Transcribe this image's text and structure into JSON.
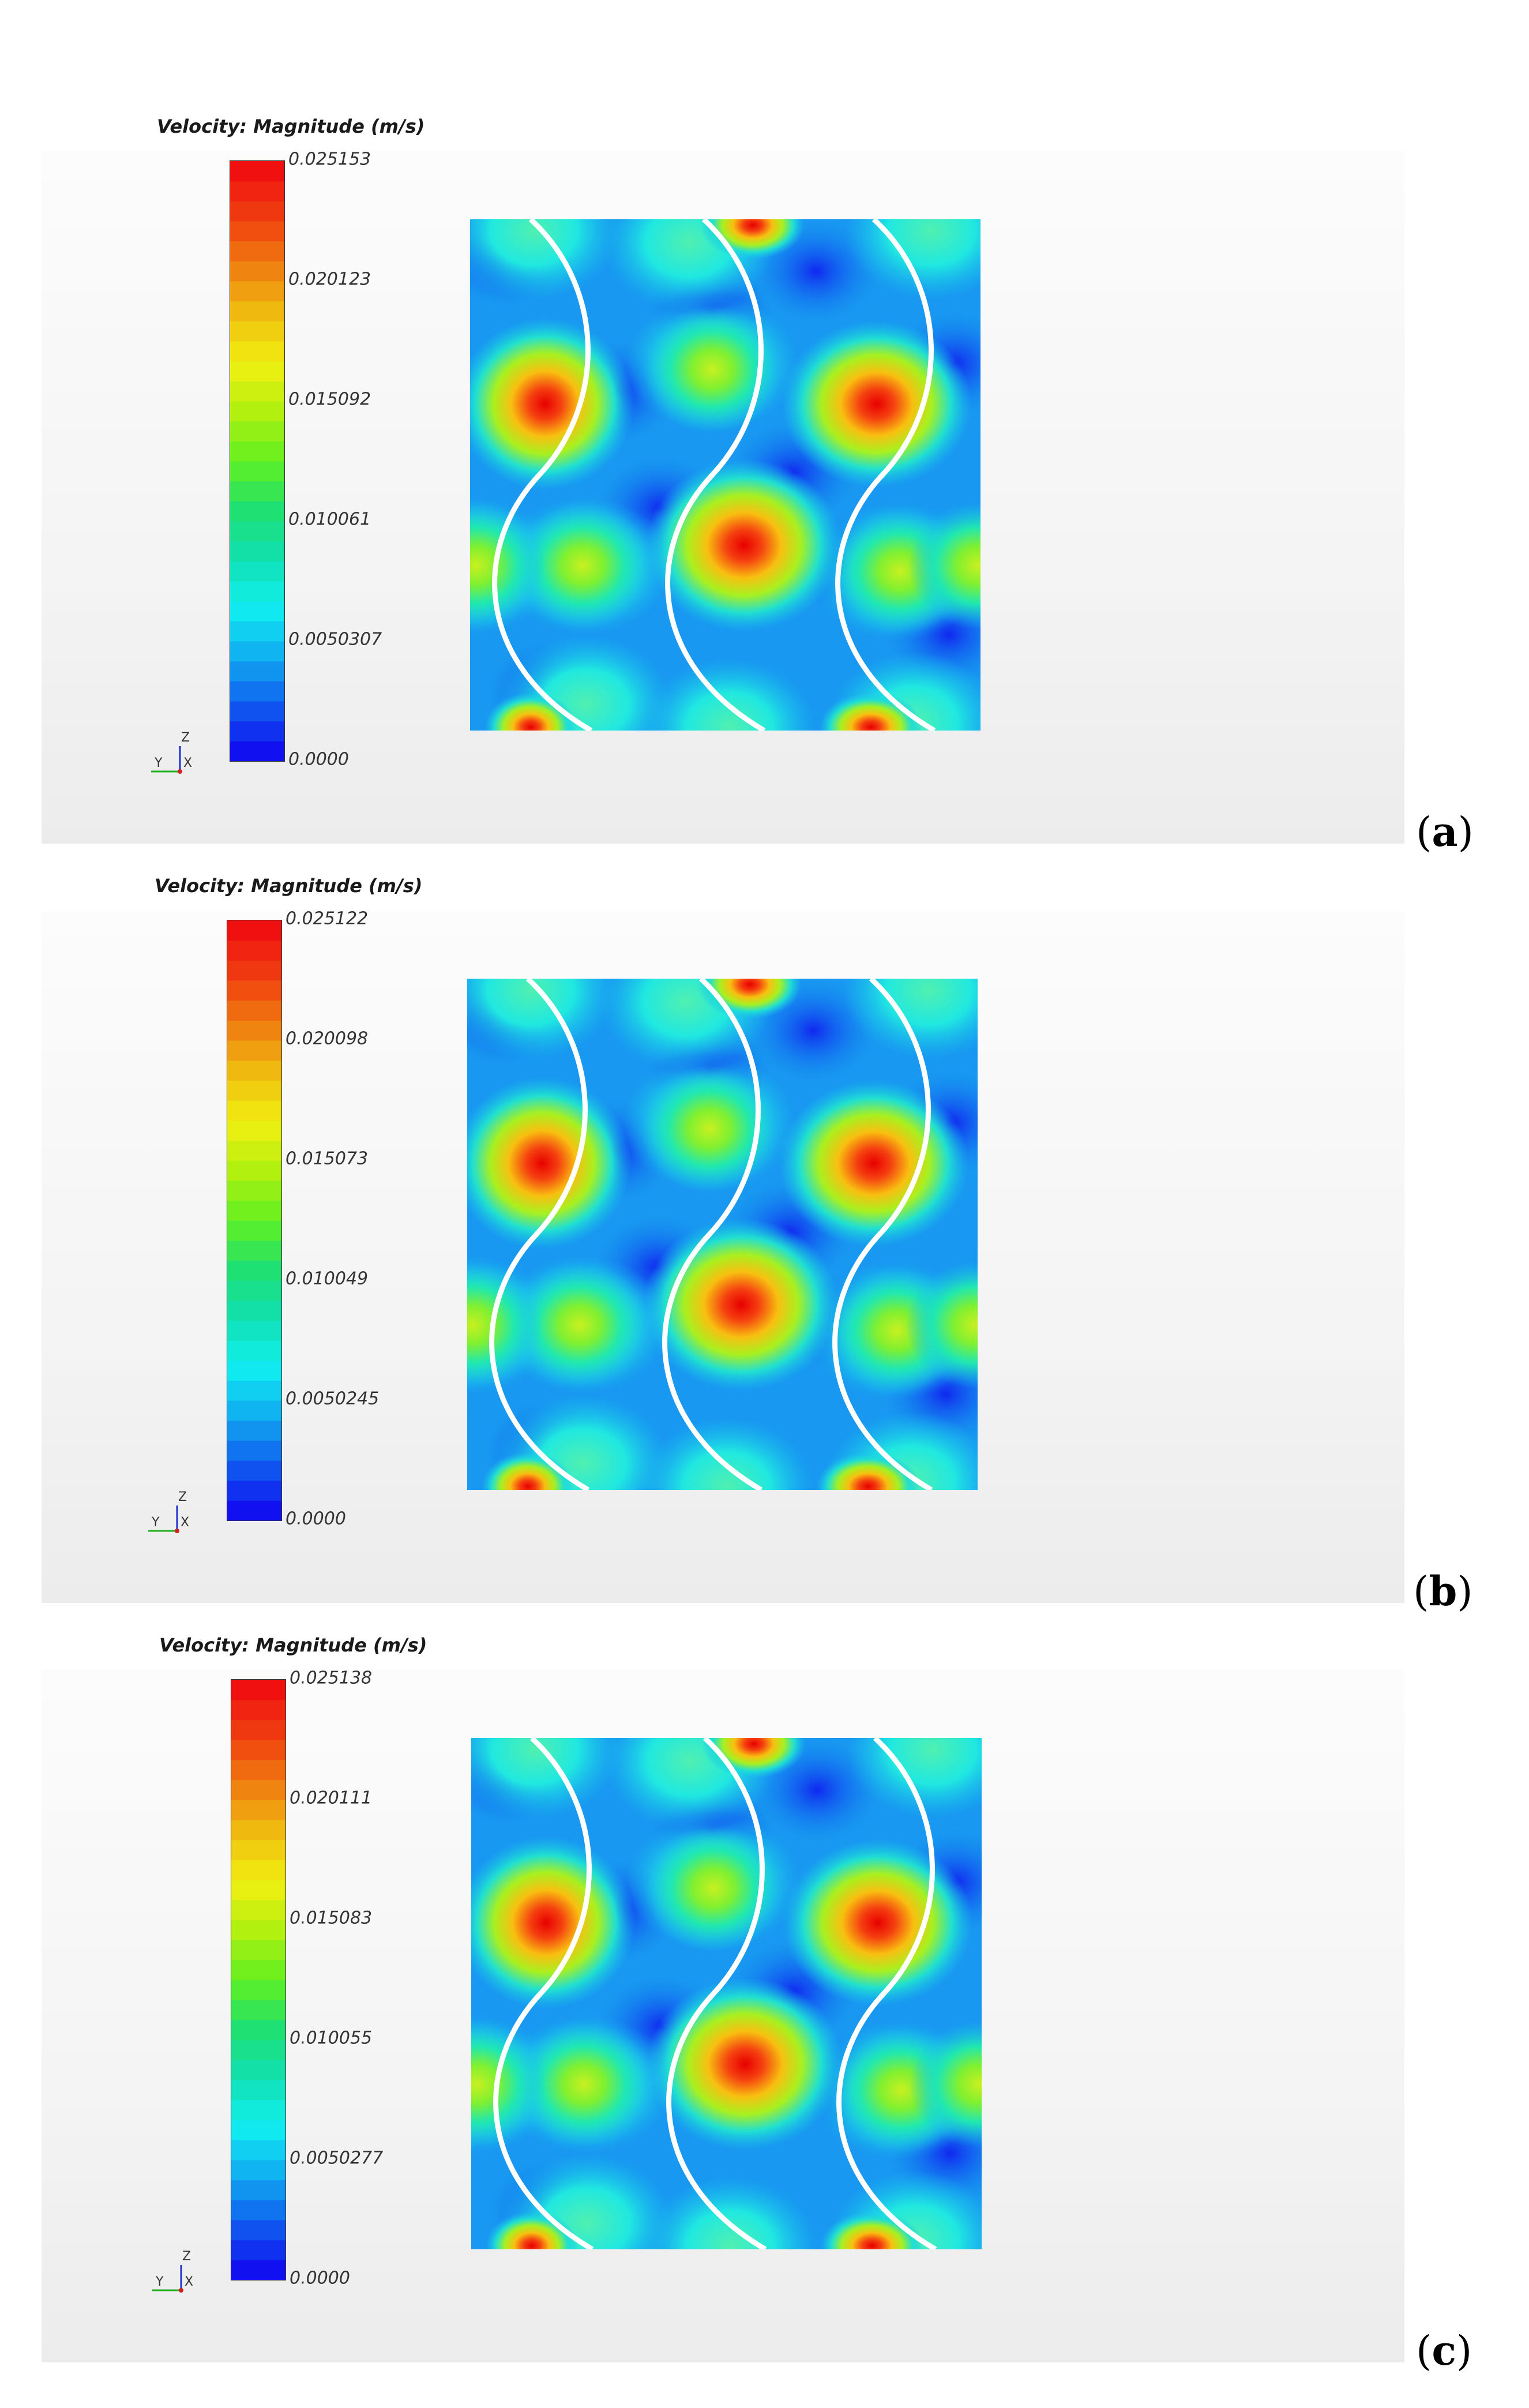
{
  "colors": {
    "scale": [
      "#1010f0",
      "#1060f0",
      "#10b0f0",
      "#10f0f0",
      "#10e0b0",
      "#20e070",
      "#60f020",
      "#b0f010",
      "#f0f010",
      "#f0c010",
      "#f08010",
      "#f04010",
      "#f01010"
    ]
  },
  "panels": [
    {
      "letter": "a",
      "title": "Velocity: Magnitude (m/s)",
      "ticks": [
        "0.025153",
        "0.020123",
        "0.015092",
        "0.010061",
        "0.0050307",
        "0.0000"
      ],
      "axes": {
        "z": "Z",
        "y": "Y",
        "x": "X"
      }
    },
    {
      "letter": "b",
      "title": "Velocity: Magnitude (m/s)",
      "ticks": [
        "0.025122",
        "0.020098",
        "0.015073",
        "0.010049",
        "0.0050245",
        "0.0000"
      ],
      "axes": {
        "z": "Z",
        "y": "Y",
        "x": "X"
      }
    },
    {
      "letter": "c",
      "title": "Velocity: Magnitude (m/s)",
      "ticks": [
        "0.025138",
        "0.020111",
        "0.015083",
        "0.010055",
        "0.0050277",
        "0.0000"
      ],
      "axes": {
        "z": "Z",
        "y": "Y",
        "x": "X"
      }
    }
  ]
}
